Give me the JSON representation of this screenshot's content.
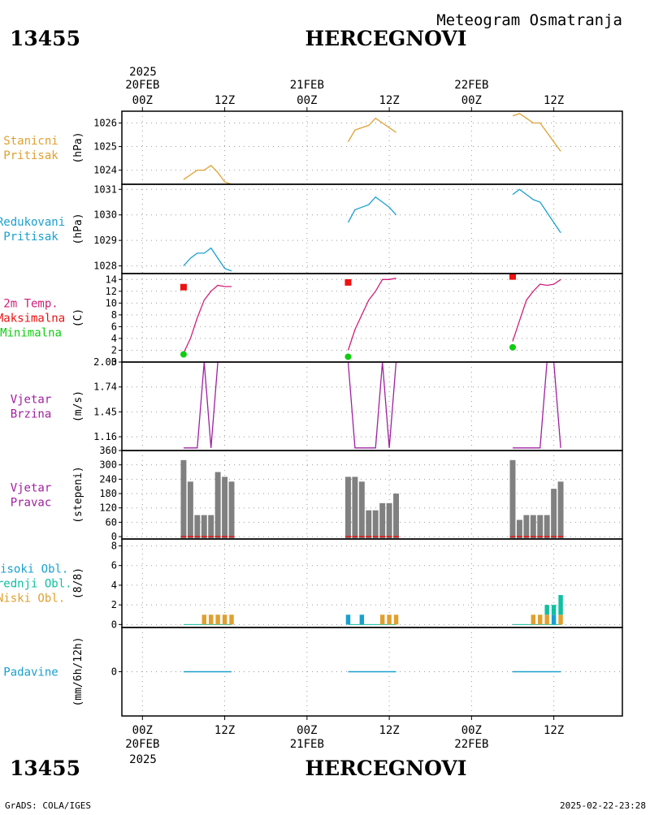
{
  "header": {
    "station_id": "13455",
    "station_name": "HERCEGNOVI",
    "product": "Meteogram Osmatranja"
  },
  "footer": {
    "station_id": "13455",
    "station_name": "HERCEGNOVI",
    "credit": "GrADS: COLA/IGES",
    "generated": "2025-02-22-23:28"
  },
  "time_axis": {
    "top_year": "2025",
    "bottom_year": "2025",
    "ticks": [
      {
        "t": 0,
        "hour": "00Z",
        "date": "20FEB"
      },
      {
        "t": 12,
        "hour": "12Z",
        "date": ""
      },
      {
        "t": 24,
        "hour": "00Z",
        "date": "21FEB"
      },
      {
        "t": 36,
        "hour": "12Z",
        "date": ""
      },
      {
        "t": 48,
        "hour": "00Z",
        "date": "22FEB"
      },
      {
        "t": 60,
        "hour": "12Z",
        "date": ""
      }
    ],
    "range_hours": [
      -3,
      70
    ]
  },
  "colors": {
    "station_pressure": "#e0a030",
    "reduced_pressure": "#1aa0d0",
    "temperature": "#d0207a",
    "tmax": "#ee1111",
    "tmin": "#11cc11",
    "wind": "#a020a0",
    "wind_dir_bar": "#808080",
    "wind_dir_base": "#ee1111",
    "cloud_high": "#1aa0d0",
    "cloud_mid": "#10c0a0",
    "cloud_low": "#e0a030",
    "precip": "#1aa0d0",
    "grid": "#999999"
  },
  "chart_data": [
    {
      "type": "line",
      "label": [
        "Stanicni",
        "Pritisak"
      ],
      "unit": "(hPa)",
      "ylim": [
        1023.4,
        1026.5
      ],
      "yticks": [
        "1024",
        "1025",
        "1026"
      ],
      "series": [
        {
          "color_key": "station_pressure",
          "segments": [
            {
              "x": [
                6,
                7,
                8,
                9,
                10,
                11,
                12,
                13
              ],
              "y": [
                1023.6,
                1023.8,
                1024.0,
                1024.0,
                1024.2,
                1023.9,
                1023.5,
                1023.4
              ]
            },
            {
              "x": [
                30,
                31,
                32,
                33,
                34,
                35,
                36,
                37
              ],
              "y": [
                1025.2,
                1025.7,
                1025.8,
                1025.9,
                1026.2,
                1026.0,
                1025.8,
                1025.6
              ]
            },
            {
              "x": [
                54,
                55,
                56,
                57,
                58,
                59,
                60,
                61
              ],
              "y": [
                1026.3,
                1026.4,
                1026.2,
                1026.0,
                1026.0,
                1025.6,
                1025.2,
                1024.8
              ]
            }
          ]
        }
      ]
    },
    {
      "type": "line",
      "label": [
        "Redukovani",
        "Pritisak"
      ],
      "unit": "(hPa)",
      "ylim": [
        1027.7,
        1031.2
      ],
      "yticks": [
        "1028",
        "1029",
        "1030",
        "1031"
      ],
      "series": [
        {
          "color_key": "reduced_pressure",
          "segments": [
            {
              "x": [
                6,
                7,
                8,
                9,
                10,
                11,
                12,
                13
              ],
              "y": [
                1028.0,
                1028.3,
                1028.5,
                1028.5,
                1028.7,
                1028.3,
                1027.9,
                1027.8
              ]
            },
            {
              "x": [
                30,
                31,
                32,
                33,
                34,
                35,
                36,
                37
              ],
              "y": [
                1029.7,
                1030.2,
                1030.3,
                1030.4,
                1030.7,
                1030.5,
                1030.3,
                1030.0
              ]
            },
            {
              "x": [
                54,
                55,
                56,
                57,
                58,
                59,
                60,
                61
              ],
              "y": [
                1030.8,
                1031.0,
                1030.8,
                1030.6,
                1030.5,
                1030.1,
                1029.7,
                1029.3
              ]
            }
          ]
        }
      ]
    },
    {
      "type": "line",
      "label": [
        "2m Temp.",
        "Maksimalna",
        "Minimalna"
      ],
      "label_color_keys": [
        "temperature",
        "tmax",
        "tmin"
      ],
      "unit": "(C)",
      "ylim": [
        0,
        15
      ],
      "yticks": [
        "0",
        "2",
        "4",
        "6",
        "8",
        "10",
        "12",
        "14"
      ],
      "series": [
        {
          "color_key": "temperature",
          "segments": [
            {
              "x": [
                6,
                7,
                8,
                9,
                10,
                11,
                12,
                13
              ],
              "y": [
                1.5,
                4.0,
                7.5,
                10.5,
                12.0,
                13.0,
                12.8,
                12.8
              ]
            },
            {
              "x": [
                30,
                31,
                32,
                33,
                34,
                35,
                36,
                37
              ],
              "y": [
                2.0,
                5.5,
                8.0,
                10.5,
                12.0,
                14.0,
                14.0,
                14.2
              ]
            },
            {
              "x": [
                54,
                55,
                56,
                57,
                58,
                59,
                60,
                61
              ],
              "y": [
                3.5,
                7.0,
                10.5,
                12.0,
                13.2,
                13.0,
                13.2,
                14.0
              ]
            }
          ]
        }
      ],
      "tmax_points": [
        {
          "x": 6,
          "y": 12.7
        },
        {
          "x": 30,
          "y": 13.5
        },
        {
          "x": 54,
          "y": 14.5
        }
      ],
      "tmin_points": [
        {
          "x": 6,
          "y": 1.3
        },
        {
          "x": 30,
          "y": 0.9
        },
        {
          "x": 54,
          "y": 2.5
        }
      ]
    },
    {
      "type": "line",
      "label": [
        "Vjetar",
        "Brzina"
      ],
      "unit": "(m/s)",
      "ylim": [
        1.0,
        2.03
      ],
      "yticks": [
        "1.16",
        "1.45",
        "1.74",
        "2.03"
      ],
      "series": [
        {
          "color_key": "wind",
          "segments": [
            {
              "x": [
                6,
                7,
                8,
                9,
                10,
                11,
                12,
                13
              ],
              "y": [
                1.03,
                1.03,
                1.03,
                2.03,
                1.03,
                2.03,
                2.03,
                2.03
              ]
            },
            {
              "x": [
                30,
                31,
                32,
                33,
                34,
                35,
                36,
                37
              ],
              "y": [
                2.03,
                1.03,
                1.03,
                1.03,
                1.03,
                2.03,
                1.03,
                2.03
              ]
            },
            {
              "x": [
                54,
                55,
                56,
                57,
                58,
                59,
                60,
                61
              ],
              "y": [
                1.03,
                1.03,
                1.03,
                1.03,
                1.03,
                2.03,
                2.03,
                1.03
              ]
            }
          ]
        }
      ]
    },
    {
      "type": "bar",
      "label": [
        "Vjetar",
        "Pravac"
      ],
      "unit": "(stepeni)",
      "ylim": [
        -10,
        360
      ],
      "yticks": [
        "0",
        "60",
        "120",
        "180",
        "240",
        "300",
        "360"
      ],
      "x": [
        6,
        7,
        8,
        9,
        10,
        11,
        12,
        13,
        30,
        31,
        32,
        33,
        34,
        35,
        36,
        37,
        54,
        55,
        56,
        57,
        58,
        59,
        60,
        61
      ],
      "values": [
        320,
        230,
        90,
        90,
        90,
        270,
        250,
        230,
        250,
        250,
        230,
        110,
        110,
        140,
        140,
        180,
        320,
        70,
        90,
        90,
        90,
        90,
        200,
        230
      ]
    },
    {
      "type": "bar",
      "label": [
        "Visoki Obl.",
        "Srednji Obl.",
        "Niski Obl."
      ],
      "label_color_keys": [
        "cloud_high",
        "cloud_mid",
        "cloud_low"
      ],
      "unit": "(8/8)",
      "ylim": [
        -0.3,
        8.7
      ],
      "yticks": [
        "0",
        "2",
        "4",
        "6",
        "8"
      ],
      "x": [
        30,
        32,
        35,
        36,
        37,
        9,
        10,
        11,
        12,
        13,
        57,
        58,
        59,
        60,
        61
      ],
      "series": [
        {
          "name": "Visoki Obl.",
          "color_key": "cloud_high",
          "values": [
            1,
            1,
            0,
            0,
            0,
            0,
            0,
            0,
            0,
            0,
            0,
            0,
            0,
            1,
            0
          ]
        },
        {
          "name": "Srednji Obl.",
          "color_key": "cloud_mid",
          "values": [
            0,
            0,
            0,
            0,
            0,
            0,
            0,
            0,
            0,
            0,
            0,
            0,
            1,
            1,
            2
          ]
        },
        {
          "name": "Niski Obl.",
          "color_key": "cloud_low",
          "values": [
            0,
            0,
            1,
            1,
            1,
            1,
            1,
            1,
            1,
            1,
            1,
            1,
            1,
            0,
            1
          ]
        }
      ]
    },
    {
      "type": "bar",
      "label": [
        "Padavine"
      ],
      "unit": "(mm/6h/12h)",
      "ylim": [
        -4,
        4
      ],
      "yticks": [
        "0"
      ],
      "x": [
        6,
        7,
        8,
        9,
        10,
        11,
        12,
        13,
        30,
        31,
        32,
        33,
        34,
        35,
        36,
        37,
        54,
        55,
        56,
        57,
        58,
        59,
        60,
        61
      ],
      "values": [
        0,
        0,
        0,
        0,
        0,
        0,
        0,
        0,
        0,
        0,
        0,
        0,
        0,
        0,
        0,
        0,
        0,
        0,
        0,
        0,
        0,
        0,
        0,
        0
      ]
    }
  ]
}
